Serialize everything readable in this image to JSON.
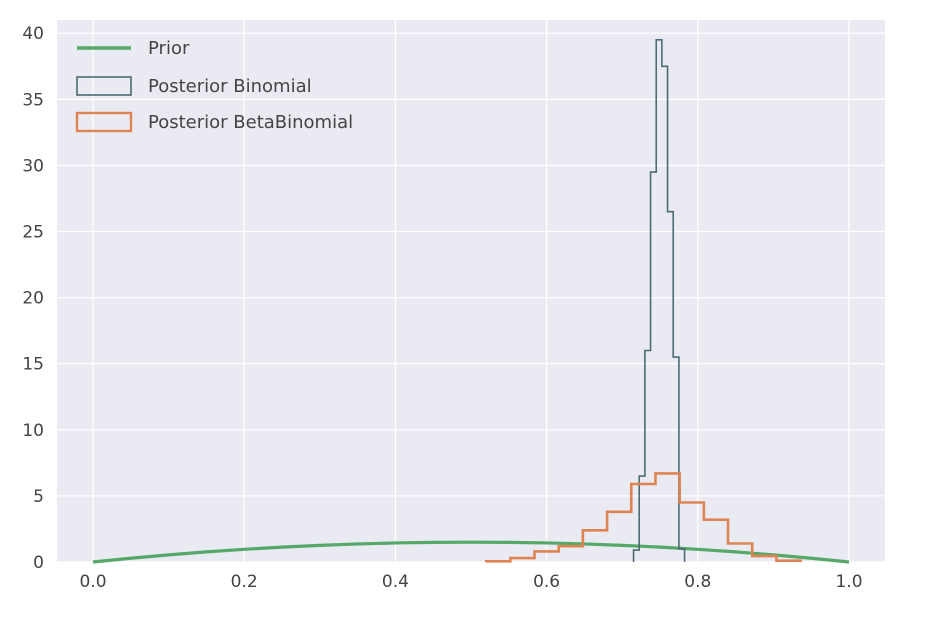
{
  "chart_data": {
    "type": "step-histogram",
    "title": "",
    "xlabel": "",
    "ylabel": "",
    "xlim": [
      -0.05,
      1.05
    ],
    "ylim": [
      0,
      41
    ],
    "x_ticks": [
      "0.0",
      "0.2",
      "0.4",
      "0.6",
      "0.8",
      "1.0"
    ],
    "x_tick_values": [
      0.0,
      0.2,
      0.4,
      0.6,
      0.8,
      1.0
    ],
    "y_ticks": [
      "0",
      "5",
      "10",
      "15",
      "20",
      "25",
      "30",
      "35",
      "40"
    ],
    "y_tick_values": [
      0,
      5,
      10,
      15,
      20,
      25,
      30,
      35,
      40
    ],
    "grid": true,
    "legend_position": "top-left",
    "series": [
      {
        "name": "Prior",
        "kind": "line",
        "color": "#55a868",
        "formula": "6 * x * (1 - x)",
        "x": [
          0.0,
          0.05,
          0.1,
          0.15,
          0.2,
          0.25,
          0.3,
          0.35,
          0.4,
          0.45,
          0.5,
          0.55,
          0.6,
          0.65,
          0.7,
          0.75,
          0.8,
          0.85,
          0.9,
          0.95,
          1.0
        ],
        "values": [
          0.0,
          0.285,
          0.54,
          0.765,
          0.96,
          1.125,
          1.26,
          1.365,
          1.44,
          1.485,
          1.5,
          1.485,
          1.44,
          1.365,
          1.26,
          1.125,
          0.96,
          0.765,
          0.54,
          0.285,
          0.0
        ]
      },
      {
        "name": "Posterior Binomial",
        "kind": "step",
        "color": "#4c6b73",
        "bin_edges": [
          0.715,
          0.7225,
          0.73,
          0.7375,
          0.745,
          0.7525,
          0.76,
          0.7675,
          0.775,
          0.7825
        ],
        "values": [
          0.9,
          6.5,
          16.0,
          29.5,
          39.5,
          37.5,
          26.5,
          15.5,
          1.0
        ]
      },
      {
        "name": "Posterior BetaBinomial",
        "kind": "step",
        "color": "#dd8452",
        "bin_edges": [
          0.52,
          0.552,
          0.584,
          0.616,
          0.648,
          0.68,
          0.712,
          0.744,
          0.776,
          0.808,
          0.84,
          0.872,
          0.904,
          0.936
        ],
        "values": [
          0.05,
          0.3,
          0.8,
          1.2,
          2.4,
          3.8,
          5.9,
          6.7,
          4.5,
          3.2,
          1.4,
          0.45,
          0.1
        ]
      }
    ]
  }
}
